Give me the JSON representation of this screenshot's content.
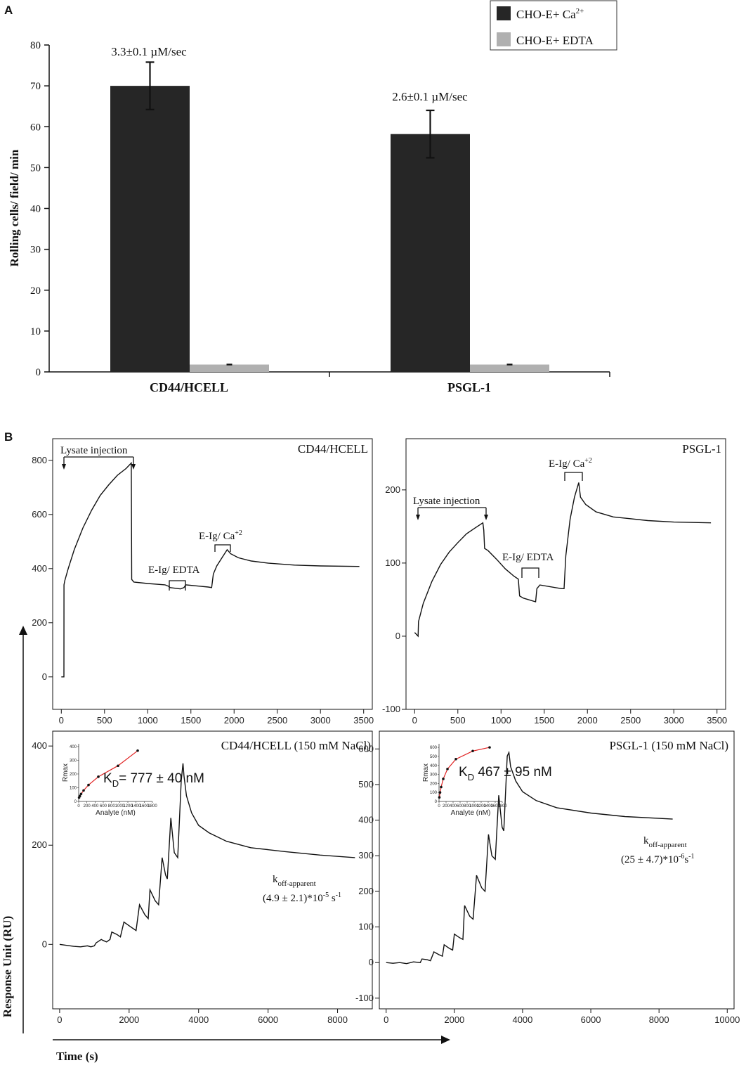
{
  "panel_a": {
    "letter": "A",
    "legend": [
      {
        "label": "CHO-E+ Ca",
        "sup": "2+",
        "color": "#262626"
      },
      {
        "label": "CHO-E+ EDTA",
        "sup": "",
        "color": "#b0b0b0"
      }
    ]
  },
  "panel_b": {
    "letter": "B",
    "shared_ylabel": "Response Unit (RU)",
    "shared_xlabel": "Time (s)"
  },
  "chart_data": [
    {
      "id": "A",
      "type": "bar",
      "ylabel": "Rolling cells/ field/ min",
      "ylim": [
        0,
        80
      ],
      "yticks": [
        0,
        10,
        20,
        30,
        40,
        50,
        60,
        70,
        80
      ],
      "categories": [
        "CD44/HCELL",
        "PSGL-1"
      ],
      "series": [
        {
          "name": "CHO-E+ Ca2+",
          "color": "#262626",
          "values": [
            70,
            58.2
          ],
          "errors": [
            5.8,
            5.8
          ]
        },
        {
          "name": "CHO-E+ EDTA",
          "color": "#b0b0b0",
          "values": [
            1.8,
            1.8
          ],
          "errors": [
            0.1,
            0.1
          ]
        }
      ],
      "annotations": [
        "3.3±0.1 µM/sec",
        "2.6±0.1 µM/sec"
      ],
      "legend_position": "top-right"
    },
    {
      "id": "B1",
      "type": "line",
      "title": "CD44/HCELL",
      "xlim": [
        -100,
        3600
      ],
      "ylim": [
        -120,
        880
      ],
      "xticks": [
        0,
        500,
        1000,
        1500,
        2000,
        2500,
        3000,
        3500
      ],
      "yticks": [
        0,
        200,
        400,
        600,
        800
      ],
      "points": [
        [
          0,
          0
        ],
        [
          30,
          0
        ],
        [
          31,
          340
        ],
        [
          40,
          355
        ],
        [
          80,
          400
        ],
        [
          150,
          470
        ],
        [
          250,
          550
        ],
        [
          350,
          615
        ],
        [
          450,
          670
        ],
        [
          550,
          710
        ],
        [
          650,
          745
        ],
        [
          750,
          770
        ],
        [
          810,
          790
        ],
        [
          815,
          360
        ],
        [
          840,
          350
        ],
        [
          1000,
          345
        ],
        [
          1200,
          340
        ],
        [
          1240,
          335
        ],
        [
          1260,
          330
        ],
        [
          1380,
          325
        ],
        [
          1420,
          330
        ],
        [
          1440,
          340
        ],
        [
          1600,
          335
        ],
        [
          1700,
          332
        ],
        [
          1740,
          330
        ],
        [
          1760,
          380
        ],
        [
          1800,
          410
        ],
        [
          1860,
          440
        ],
        [
          1920,
          470
        ],
        [
          1960,
          455
        ],
        [
          2050,
          440
        ],
        [
          2200,
          428
        ],
        [
          2400,
          420
        ],
        [
          2700,
          413
        ],
        [
          3000,
          410
        ],
        [
          3450,
          408
        ]
      ],
      "annotations": [
        {
          "text": "Lysate injection",
          "x": 300,
          "y": 830
        },
        {
          "text": "E-Ig/ EDTA",
          "x": 1300,
          "y": 460
        },
        {
          "text": "E-Ig/ Ca",
          "sup": "+2",
          "x": 1800,
          "y": 575
        }
      ]
    },
    {
      "id": "B2",
      "type": "line",
      "title": "PSGL-1",
      "xlim": [
        -100,
        3600
      ],
      "ylim": [
        -100,
        270
      ],
      "xticks": [
        0,
        500,
        1000,
        1500,
        2000,
        2500,
        3000,
        3500
      ],
      "yticks": [
        -100,
        0,
        100,
        200
      ],
      "points": [
        [
          0,
          5
        ],
        [
          40,
          0
        ],
        [
          45,
          20
        ],
        [
          100,
          45
        ],
        [
          200,
          75
        ],
        [
          300,
          98
        ],
        [
          400,
          115
        ],
        [
          500,
          128
        ],
        [
          600,
          140
        ],
        [
          700,
          148
        ],
        [
          790,
          155
        ],
        [
          800,
          145
        ],
        [
          810,
          120
        ],
        [
          850,
          117
        ],
        [
          950,
          105
        ],
        [
          1050,
          92
        ],
        [
          1150,
          82
        ],
        [
          1200,
          78
        ],
        [
          1215,
          55
        ],
        [
          1260,
          52
        ],
        [
          1400,
          47
        ],
        [
          1415,
          65
        ],
        [
          1450,
          70
        ],
        [
          1700,
          65
        ],
        [
          1730,
          65
        ],
        [
          1750,
          110
        ],
        [
          1800,
          160
        ],
        [
          1850,
          190
        ],
        [
          1900,
          210
        ],
        [
          1920,
          190
        ],
        [
          1980,
          180
        ],
        [
          2100,
          170
        ],
        [
          2300,
          163
        ],
        [
          2700,
          158
        ],
        [
          3000,
          156
        ],
        [
          3430,
          155
        ]
      ],
      "annotations": [
        {
          "text": "Lysate injection",
          "x": 380,
          "y": 182
        },
        {
          "text": "E-Ig/ EDTA",
          "x": 1250,
          "y": 98
        },
        {
          "text": "E-Ig/ Ca",
          "sup": "+2",
          "x": 1800,
          "y": 233
        }
      ]
    },
    {
      "id": "B3",
      "type": "line",
      "title": "CD44/HCELL (150 mM NaCl)",
      "xlim": [
        -200,
        9000
      ],
      "ylim": [
        -130,
        430
      ],
      "xticks": [
        0,
        2000,
        4000,
        6000,
        8000
      ],
      "yticks": [
        0,
        200,
        400
      ],
      "points": [
        [
          0,
          0
        ],
        [
          200,
          -2
        ],
        [
          400,
          -4
        ],
        [
          600,
          -5
        ],
        [
          800,
          -3
        ],
        [
          900,
          -5
        ],
        [
          1000,
          -3
        ],
        [
          1050,
          3
        ],
        [
          1200,
          10
        ],
        [
          1250,
          8
        ],
        [
          1350,
          5
        ],
        [
          1450,
          10
        ],
        [
          1500,
          25
        ],
        [
          1650,
          20
        ],
        [
          1750,
          15
        ],
        [
          1850,
          45
        ],
        [
          2050,
          35
        ],
        [
          2200,
          28
        ],
        [
          2300,
          80
        ],
        [
          2450,
          60
        ],
        [
          2550,
          52
        ],
        [
          2600,
          110
        ],
        [
          2750,
          88
        ],
        [
          2850,
          80
        ],
        [
          2950,
          175
        ],
        [
          3050,
          140
        ],
        [
          3100,
          132
        ],
        [
          3200,
          255
        ],
        [
          3300,
          185
        ],
        [
          3400,
          175
        ],
        [
          3500,
          330
        ],
        [
          3550,
          365
        ],
        [
          3580,
          340
        ],
        [
          3650,
          300
        ],
        [
          3800,
          265
        ],
        [
          4000,
          240
        ],
        [
          4300,
          225
        ],
        [
          4800,
          208
        ],
        [
          5500,
          195
        ],
        [
          6500,
          187
        ],
        [
          7500,
          180
        ],
        [
          8500,
          175
        ]
      ],
      "annotations": [
        "k",
        "off-apparent",
        "(4.9 ± 2.1)*10",
        "-5",
        " s",
        "-1"
      ],
      "inset": {
        "xlabel": "Analyte (nM)",
        "ylabel": "Rmax",
        "kd_text": "777 ± 40 nM",
        "x": [
          10,
          30,
          60,
          120,
          240,
          480,
          960,
          1440
        ],
        "y": [
          28,
          40,
          55,
          80,
          120,
          180,
          260,
          370
        ]
      }
    },
    {
      "id": "B4",
      "type": "line",
      "title": "PSGL-1 (150 mM NaCl)",
      "xlim": [
        -200,
        10200
      ],
      "ylim": [
        -130,
        650
      ],
      "xticks": [
        0,
        2000,
        4000,
        6000,
        8000,
        10000
      ],
      "yticks": [
        -100,
        0,
        100,
        200,
        300,
        400,
        500,
        600
      ],
      "points": [
        [
          0,
          0
        ],
        [
          200,
          -2
        ],
        [
          400,
          0
        ],
        [
          600,
          -3
        ],
        [
          800,
          2
        ],
        [
          1000,
          0
        ],
        [
          1050,
          10
        ],
        [
          1200,
          8
        ],
        [
          1300,
          5
        ],
        [
          1400,
          30
        ],
        [
          1550,
          22
        ],
        [
          1650,
          18
        ],
        [
          1700,
          50
        ],
        [
          1850,
          40
        ],
        [
          1950,
          35
        ],
        [
          2000,
          80
        ],
        [
          2150,
          70
        ],
        [
          2250,
          65
        ],
        [
          2300,
          160
        ],
        [
          2450,
          130
        ],
        [
          2550,
          122
        ],
        [
          2650,
          245
        ],
        [
          2800,
          210
        ],
        [
          2900,
          200
        ],
        [
          3000,
          360
        ],
        [
          3100,
          300
        ],
        [
          3200,
          290
        ],
        [
          3300,
          470
        ],
        [
          3400,
          380
        ],
        [
          3450,
          370
        ],
        [
          3550,
          580
        ],
        [
          3600,
          590
        ],
        [
          3650,
          550
        ],
        [
          3800,
          510
        ],
        [
          4000,
          480
        ],
        [
          4400,
          455
        ],
        [
          5000,
          435
        ],
        [
          6000,
          420
        ],
        [
          7000,
          410
        ],
        [
          8400,
          403
        ]
      ],
      "annotations": [
        "k",
        "off-apparent",
        "(25 ± 4.7)*10",
        "-6",
        "s",
        "-1"
      ],
      "inset": {
        "xlabel": "Analyte (nM)",
        "ylabel": "Rmax",
        "kd_text": "467 ± 95 nM",
        "x": [
          10,
          30,
          60,
          120,
          240,
          480,
          960,
          1440
        ],
        "y": [
          45,
          100,
          160,
          250,
          360,
          470,
          560,
          600
        ]
      }
    }
  ]
}
